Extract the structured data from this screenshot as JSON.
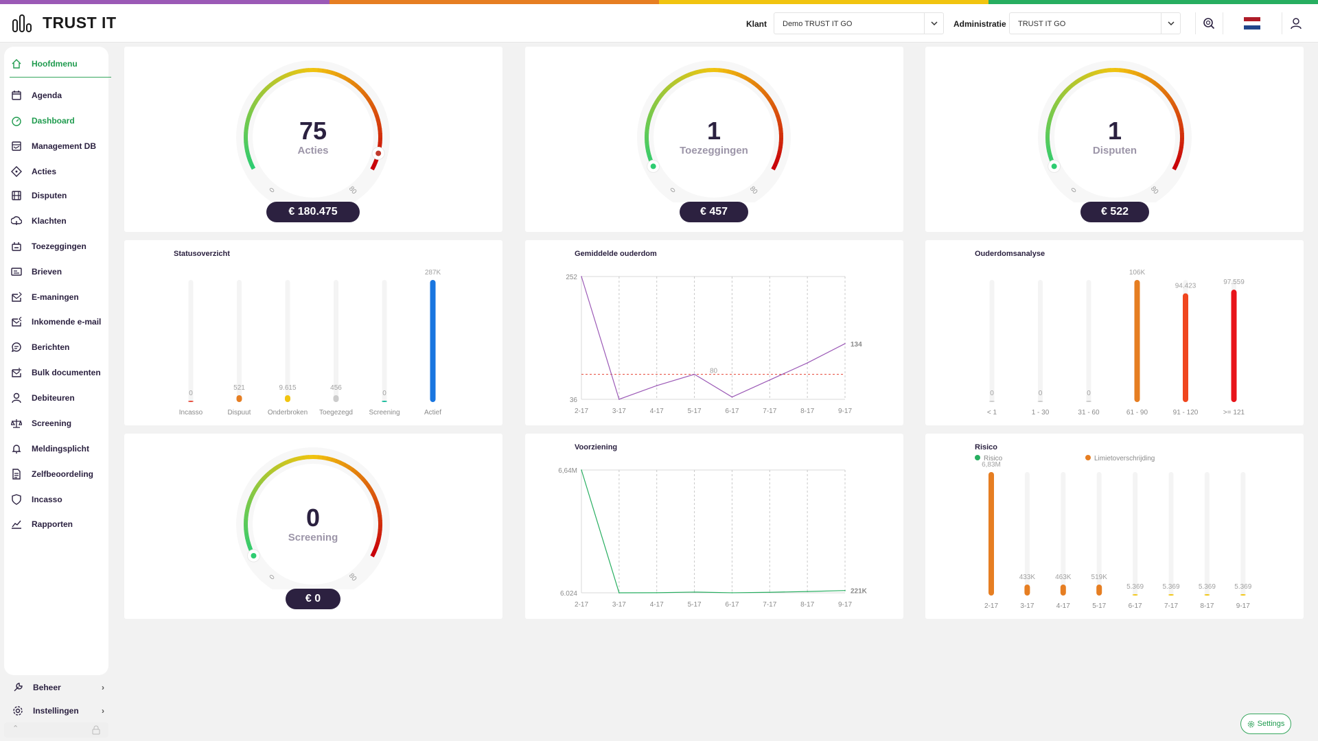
{
  "app": {
    "name": "TRUST IT"
  },
  "colors": {
    "accent": "#1f9b4e",
    "dark": "#2c2140",
    "stripe": [
      "#9b59b6",
      "#e67e22",
      "#f1c40f",
      "#27ae60"
    ]
  },
  "header": {
    "klant_label": "Klant",
    "klant_value": "Demo TRUST IT GO",
    "admin_label": "Administratie",
    "admin_value": "TRUST IT GO"
  },
  "sidebar": {
    "items": [
      {
        "label": "Hoofdmenu",
        "icon": "home-icon"
      },
      {
        "label": "Agenda",
        "icon": "calendar-icon"
      },
      {
        "label": "Dashboard",
        "icon": "dashboard-icon"
      },
      {
        "label": "Management DB",
        "icon": "management-icon"
      },
      {
        "label": "Acties",
        "icon": "actions-icon"
      },
      {
        "label": "Disputen",
        "icon": "disputes-icon"
      },
      {
        "label": "Klachten",
        "icon": "complaints-icon"
      },
      {
        "label": "Toezeggingen",
        "icon": "promises-icon"
      },
      {
        "label": "Brieven",
        "icon": "letters-icon"
      },
      {
        "label": "E-maningen",
        "icon": "email-reminder-icon"
      },
      {
        "label": "Inkomende e-mail",
        "icon": "incoming-mail-icon"
      },
      {
        "label": "Berichten",
        "icon": "messages-icon"
      },
      {
        "label": "Bulk documenten",
        "icon": "bulk-documents-icon"
      },
      {
        "label": "Debiteuren",
        "icon": "debtors-icon"
      },
      {
        "label": "Screening",
        "icon": "scales-icon"
      },
      {
        "label": "Meldingsplicht",
        "icon": "bell-icon"
      },
      {
        "label": "Zelfbeoordeling",
        "icon": "self-assessment-icon"
      },
      {
        "label": "Incasso",
        "icon": "shield-icon"
      },
      {
        "label": "Rapporten",
        "icon": "reports-icon"
      }
    ],
    "beheer": "Beheer",
    "instellingen": "Instellingen"
  },
  "gauges": [
    {
      "value": "75",
      "label": "Acties",
      "amount": "€ 180.475",
      "min": "0",
      "max": "80",
      "level": 0.94
    },
    {
      "value": "1",
      "label": "Toezeggingen",
      "amount": "€ 457",
      "min": "0",
      "max": "80",
      "level": 0.01
    },
    {
      "value": "1",
      "label": "Disputen",
      "amount": "€ 522",
      "min": "0",
      "max": "80",
      "level": 0.01
    },
    {
      "value": "0",
      "label": "Screening",
      "amount": "€ 0",
      "min": "0",
      "max": "80",
      "level": 0.0
    }
  ],
  "chart_data": [
    {
      "type": "bar",
      "title": "Statusoverzicht",
      "categories": [
        "Incasso",
        "Dispuut",
        "Onderbroken",
        "Toegezegd",
        "Screening",
        "Actief"
      ],
      "values": [
        0,
        521,
        9615,
        456,
        0,
        287000
      ],
      "labels": [
        "0",
        "521",
        "9.615",
        "456",
        "0",
        "287K"
      ],
      "colors": [
        "#e74c3c",
        "#e67e22",
        "#f1c40f",
        "#cccccc",
        "#1abc9c",
        "#1976e0"
      ],
      "ylim": [
        0,
        287000
      ]
    },
    {
      "type": "line",
      "title": "Gemiddelde ouderdom",
      "categories": [
        "2-17",
        "3-17",
        "4-17",
        "5-17",
        "6-17",
        "7-17",
        "8-17",
        "9-17"
      ],
      "values": [
        252,
        36,
        60,
        80,
        40,
        70,
        100,
        134
      ],
      "reference": {
        "value": 80,
        "label": "80"
      },
      "ymin_label": "36",
      "ymax_label": "252",
      "end_label": "134",
      "ylim": [
        36,
        252
      ]
    },
    {
      "type": "bar",
      "title": "Ouderdomsanalyse",
      "categories": [
        "< 1",
        "1 - 30",
        "31 - 60",
        "61 - 90",
        "91 - 120",
        ">= 121"
      ],
      "values": [
        0,
        0,
        0,
        106000,
        94423,
        97559
      ],
      "labels": [
        "0",
        "0",
        "0",
        "106K",
        "94.423",
        "97.559"
      ],
      "colors": [
        "#cccccc",
        "#cccccc",
        "#cccccc",
        "#e67e22",
        "#f0461e",
        "#e8141a"
      ],
      "ylim": [
        0,
        106000
      ]
    },
    {
      "type": "line",
      "title": "Voorziening",
      "categories": [
        "2-17",
        "3-17",
        "4-17",
        "5-17",
        "6-17",
        "7-17",
        "8-17",
        "9-17"
      ],
      "values": [
        6640000,
        6024,
        50000,
        120000,
        40000,
        100000,
        160000,
        221000
      ],
      "ymin_label": "6.024",
      "ymax_label": "6,64M",
      "end_label": "221K",
      "ylim": [
        6024,
        6640000
      ]
    },
    {
      "type": "bar",
      "title": "Risico",
      "legend": [
        {
          "name": "Risico",
          "color": "#27ae60"
        },
        {
          "name": "Limietoverschrijding",
          "color": "#e67e22"
        }
      ],
      "categories": [
        "2-17",
        "3-17",
        "4-17",
        "5-17",
        "6-17",
        "7-17",
        "8-17",
        "9-17"
      ],
      "values": [
        6830000,
        433000,
        463000,
        519000,
        5369,
        5369,
        5369,
        5369
      ],
      "labels": [
        "6,83M",
        "433K",
        "463K",
        "519K",
        "5.369",
        "5.369",
        "5.369",
        "5.369"
      ],
      "colors": [
        "#e67e22",
        "#e67e22",
        "#e67e22",
        "#e67e22",
        "#f1c40f",
        "#f1c40f",
        "#f1c40f",
        "#f1c40f"
      ],
      "ylim": [
        0,
        6830000
      ]
    }
  ],
  "settings_button": "Settings"
}
